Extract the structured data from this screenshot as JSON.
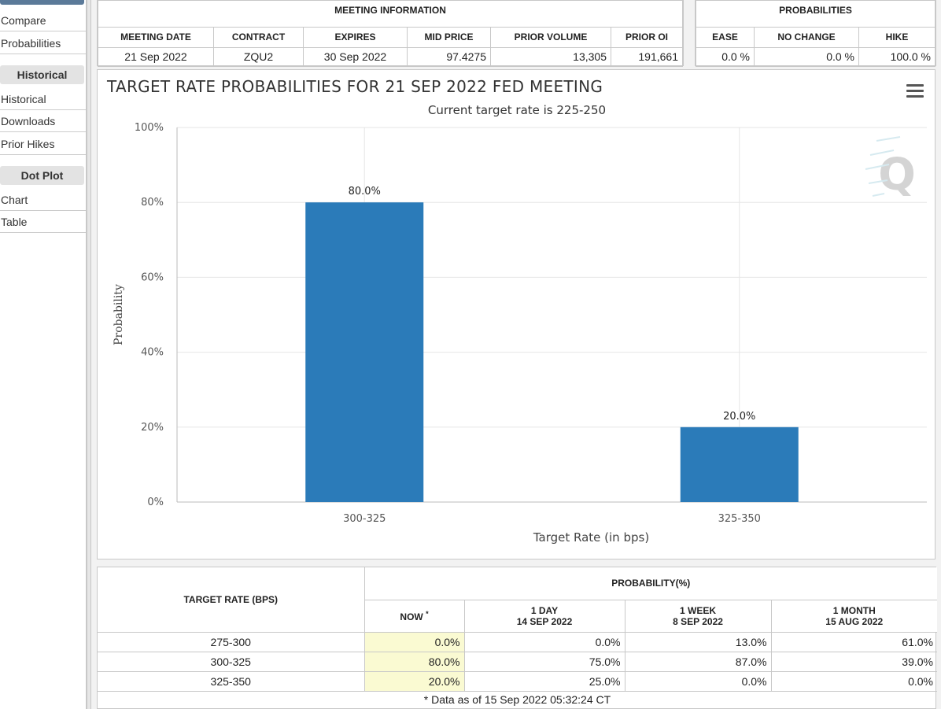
{
  "sidebar": {
    "items_top": [
      "Compare",
      "Probabilities"
    ],
    "historical_header": "Historical",
    "items_historical": [
      "Historical",
      "Downloads",
      "Prior Hikes"
    ],
    "dotplot_header": "Dot Plot",
    "items_dotplot": [
      "Chart",
      "Table"
    ]
  },
  "meeting_info": {
    "title": "MEETING INFORMATION",
    "headers": [
      "MEETING DATE",
      "CONTRACT",
      "EXPIRES",
      "MID PRICE",
      "PRIOR VOLUME",
      "PRIOR OI"
    ],
    "values": [
      "21 Sep 2022",
      "ZQU2",
      "30 Sep 2022",
      "97.4275",
      "13,305",
      "191,661"
    ]
  },
  "probabilities": {
    "title": "PROBABILITIES",
    "headers": [
      "EASE",
      "NO CHANGE",
      "HIKE"
    ],
    "values": [
      "0.0 %",
      "0.0 %",
      "100.0 %"
    ]
  },
  "chart": {
    "menu_icon": "hamburger-menu-icon",
    "watermark": "Q",
    "bar_color": "#2b7bb9"
  },
  "chart_data": {
    "type": "bar",
    "title": "TARGET RATE PROBABILITIES FOR 21 SEP 2022 FED MEETING",
    "subtitle": "Current target rate is 225-250",
    "categories": [
      "300-325",
      "325-350"
    ],
    "values": [
      80.0,
      20.0
    ],
    "data_labels": [
      "80.0%",
      "20.0%"
    ],
    "xlabel": "Target Rate (in bps)",
    "ylabel": "Probability",
    "ylim": [
      0,
      100
    ],
    "yticks": [
      "0%",
      "20%",
      "40%",
      "60%",
      "80%",
      "100%"
    ],
    "grid": true
  },
  "prob_table": {
    "target_header": "TARGET RATE (BPS)",
    "prob_header": "PROBABILITY(%)",
    "col_now": "NOW",
    "col_now_mark": "*",
    "col_1day": [
      "1 DAY",
      "14 SEP 2022"
    ],
    "col_1week": [
      "1 WEEK",
      "8 SEP 2022"
    ],
    "col_1month": [
      "1 MONTH",
      "15 AUG 2022"
    ],
    "rows": [
      {
        "rate": "275-300",
        "now": "0.0%",
        "day": "0.0%",
        "week": "13.0%",
        "month": "61.0%"
      },
      {
        "rate": "300-325",
        "now": "80.0%",
        "day": "75.0%",
        "week": "87.0%",
        "month": "39.0%"
      },
      {
        "rate": "325-350",
        "now": "20.0%",
        "day": "25.0%",
        "week": "0.0%",
        "month": "0.0%"
      }
    ],
    "footnote": "* Data as of 15 Sep 2022 05:32:24 CT"
  }
}
